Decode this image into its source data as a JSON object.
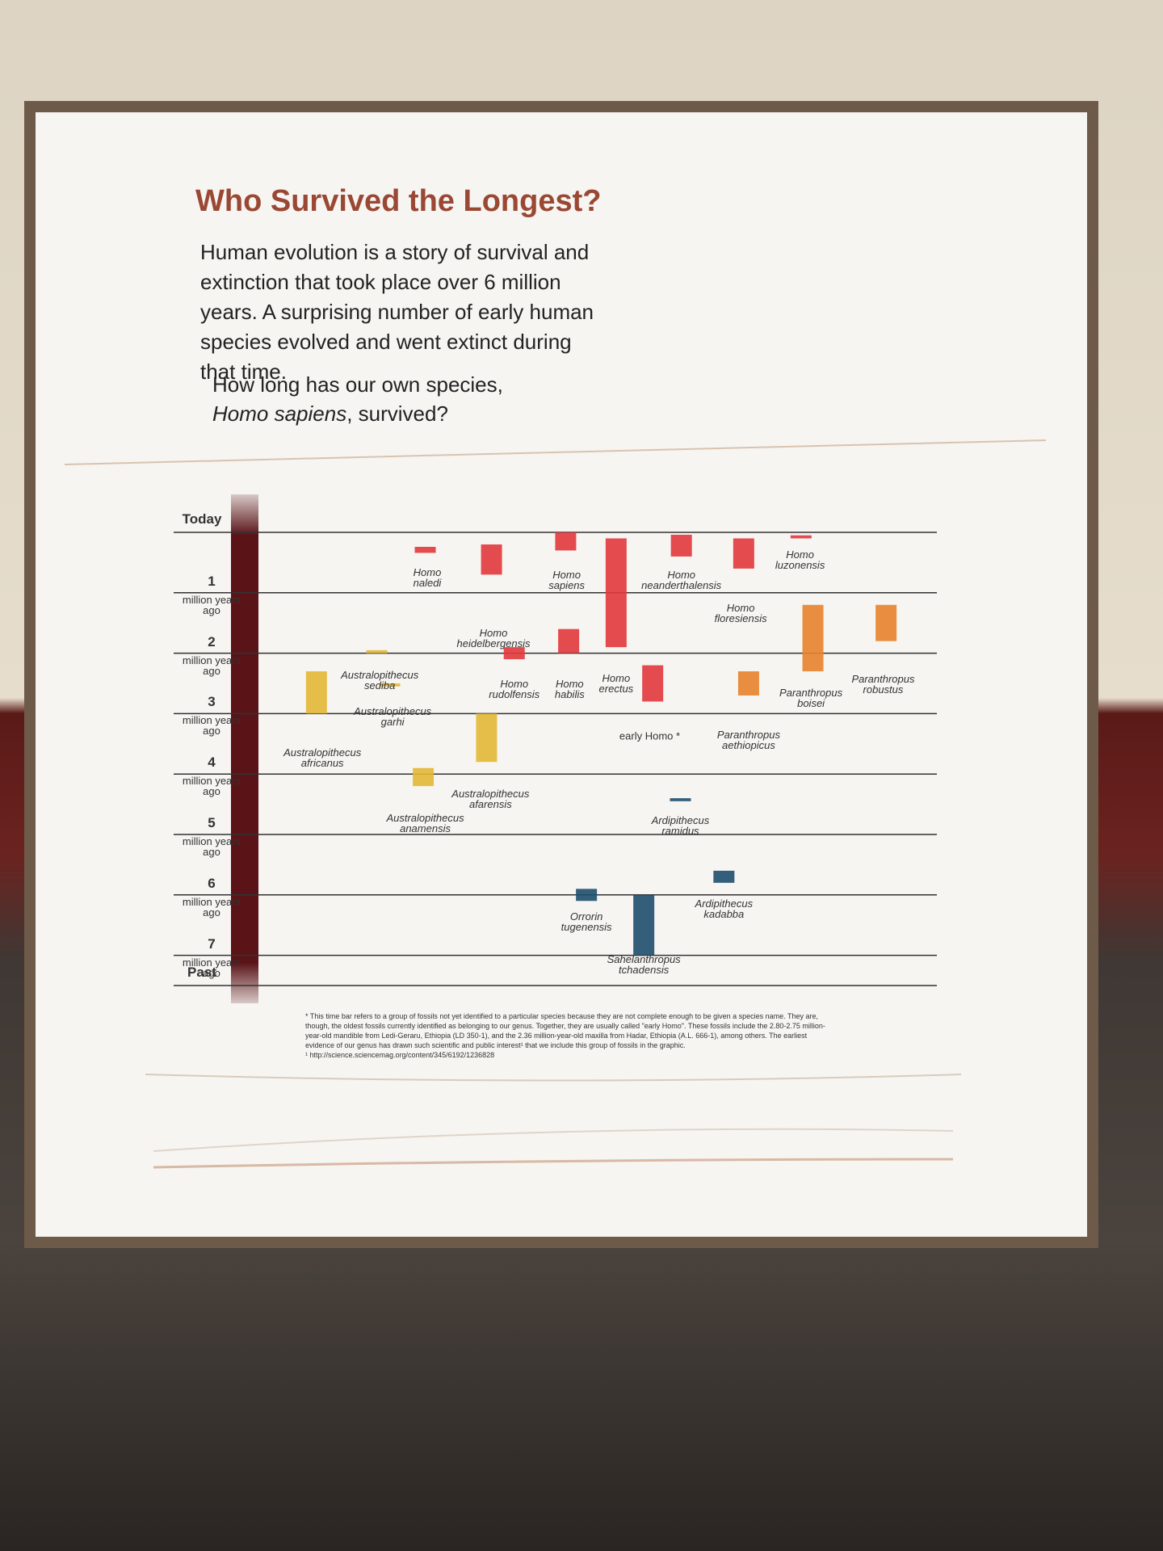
{
  "header": {
    "title": "Who Survived the Longest?",
    "intro": "Human evolution is a story of survival and extinction that took place over 6 million years. A surprising number of early human species evolved and went extinct during that time.",
    "question": [
      "How long has our own species, ",
      "Homo sapiens",
      ", survived?"
    ]
  },
  "chart_data": {
    "type": "range-bar",
    "categories": [
      "Homo naledi",
      "Homo heidelbergensis",
      "Homo sapiens",
      "Homo erectus",
      "Homo neanderthalensis",
      "Homo floresiensis",
      "Homo luzonensis",
      "Homo rudolfensis",
      "Homo habilis",
      "early Homo *",
      "Australopithecus sediba",
      "Australopithecus garhi",
      "Australopithecus africanus",
      "Australopithecus afarensis",
      "Australopithecus anamensis",
      "Paranthropus boisei",
      "Paranthropus robustus",
      "Paranthropus aethiopicus",
      "Ardipithecus ramidus",
      "Ardipithecus kadabba",
      "Orrorin tugenensis",
      "Sahelanthropus tchadensis"
    ],
    "values": [
      [
        0.24,
        0.34
      ],
      [
        0.2,
        0.7
      ],
      [
        0,
        0.3
      ],
      [
        0.1,
        1.9
      ],
      [
        0.04,
        0.4
      ],
      [
        0.1,
        0.6
      ],
      [
        0.05,
        0.1
      ],
      [
        1.9,
        2.1
      ],
      [
        1.6,
        2.0
      ],
      [
        2.2,
        2.8
      ],
      [
        1.95,
        2.0
      ],
      [
        2.5,
        2.55
      ],
      [
        2.3,
        3.0
      ],
      [
        3.0,
        3.8
      ],
      [
        3.9,
        4.2
      ],
      [
        1.2,
        2.3
      ],
      [
        1.2,
        1.8
      ],
      [
        2.3,
        2.7
      ],
      [
        4.4,
        4.45
      ],
      [
        5.6,
        5.8
      ],
      [
        5.9,
        6.1
      ],
      [
        6.0,
        7.0
      ]
    ],
    "colors": [
      "#e2383c",
      "#e2383c",
      "#e2383c",
      "#e2383c",
      "#e2383c",
      "#e2383c",
      "#e2383c",
      "#e2383c",
      "#e2383c",
      "#e2383c",
      "#e3b836",
      "#e3b836",
      "#e3b836",
      "#e3b836",
      "#e3b836",
      "#e8832c",
      "#e8832c",
      "#e8832c",
      "#1f4f6e",
      "#1f4f6e",
      "#1f4f6e",
      "#1f4f6e"
    ],
    "ylim": [
      0,
      7.5
    ],
    "yticks": [
      {
        "value": 0,
        "label": "Today"
      },
      1,
      2,
      3,
      4,
      5,
      6,
      7,
      {
        "value": 7.5,
        "label": "Past"
      }
    ],
    "tick_unit": "million years ago",
    "grid": true,
    "footnote": "* This time bar refers to a group of fossils not yet identified to a particular species because they are not complete enough to be given a species name. They are, though, the oldest fossils currently identified as belonging to our genus. Together, they are usually called \"early Homo\". These fossils include the 2.80-2.75 million-year-old mandible from Ledi-Geraru, Ethiopia (LD 350-1), and the 2.36 million-year-old maxilla from Hadar, Ethiopia (A.L. 666-1), among others. The earliest evidence of our genus has drawn such scientific and public interest¹ that we include this group of fossils in the graphic.",
    "reference": "¹ http://science.sciencemag.org/content/345/6192/1236828"
  }
}
